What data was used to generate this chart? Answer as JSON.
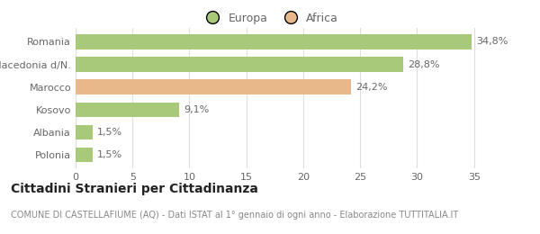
{
  "categories": [
    "Polonia",
    "Albania",
    "Kosovo",
    "Marocco",
    "Macedonia d/N.",
    "Romania"
  ],
  "values": [
    1.5,
    1.5,
    9.1,
    24.2,
    28.8,
    34.8
  ],
  "labels": [
    "1,5%",
    "1,5%",
    "9,1%",
    "24,2%",
    "28,8%",
    "34,8%"
  ],
  "colors": [
    "#a8c87a",
    "#a8c87a",
    "#a8c87a",
    "#e8b88a",
    "#a8c87a",
    "#a8c87a"
  ],
  "europa_color": "#a8c87a",
  "africa_color": "#e8b88a",
  "xlim": [
    0,
    37
  ],
  "xticks": [
    0,
    5,
    10,
    15,
    20,
    25,
    30,
    35
  ],
  "title": "Cittadini Stranieri per Cittadinanza",
  "subtitle": "COMUNE DI CASTELLAFIUME (AQ) - Dati ISTAT al 1° gennaio di ogni anno - Elaborazione TUTTITALIA.IT",
  "title_fontsize": 10,
  "subtitle_fontsize": 7,
  "label_fontsize": 8,
  "tick_fontsize": 8,
  "legend_fontsize": 9,
  "bar_height": 0.65,
  "background_color": "#ffffff"
}
